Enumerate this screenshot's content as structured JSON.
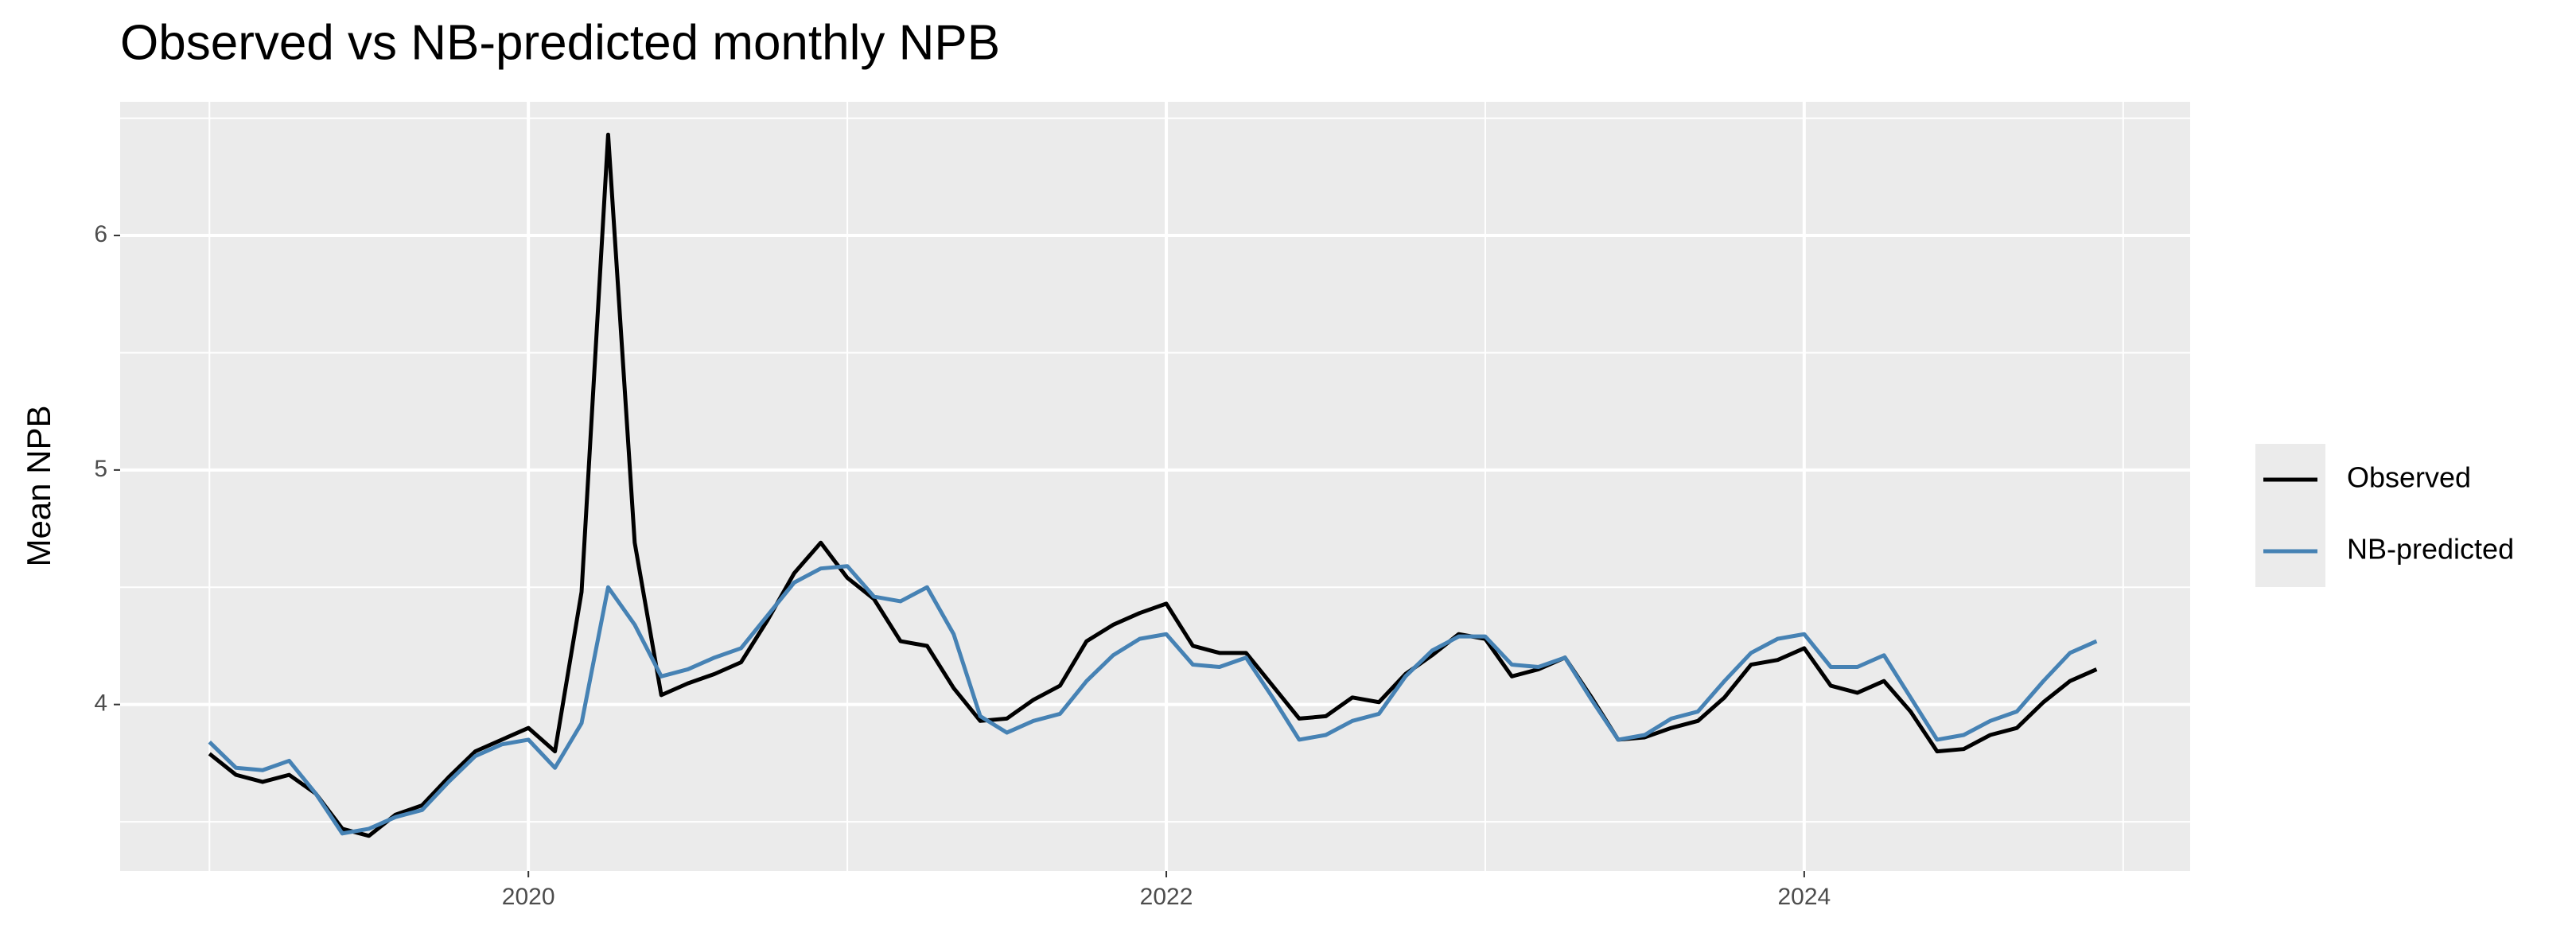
{
  "chart_data": {
    "type": "line",
    "title": "Observed vs NB-predicted monthly NPB",
    "y_label": "Mean NPB",
    "x": [
      "2019-01",
      "2019-02",
      "2019-03",
      "2019-04",
      "2019-05",
      "2019-06",
      "2019-07",
      "2019-08",
      "2019-09",
      "2019-10",
      "2019-11",
      "2019-12",
      "2020-01",
      "2020-02",
      "2020-03",
      "2020-04",
      "2020-05",
      "2020-06",
      "2020-07",
      "2020-08",
      "2020-09",
      "2020-10",
      "2020-11",
      "2020-12",
      "2021-01",
      "2021-02",
      "2021-03",
      "2021-04",
      "2021-05",
      "2021-06",
      "2021-07",
      "2021-08",
      "2021-09",
      "2021-10",
      "2021-11",
      "2021-12",
      "2022-01",
      "2022-02",
      "2022-03",
      "2022-04",
      "2022-05",
      "2022-06",
      "2022-07",
      "2022-08",
      "2022-09",
      "2022-10",
      "2022-11",
      "2022-12",
      "2023-01",
      "2023-02",
      "2023-03",
      "2023-04",
      "2023-05",
      "2023-06",
      "2023-07",
      "2023-08",
      "2023-09",
      "2023-10",
      "2023-11",
      "2023-12",
      "2024-01",
      "2024-02",
      "2024-03",
      "2024-04",
      "2024-05",
      "2024-06",
      "2024-07",
      "2024-08",
      "2024-09",
      "2024-10",
      "2024-11",
      "2024-12"
    ],
    "series": [
      {
        "name": "Observed",
        "color": "#000000",
        "values": [
          3.79,
          3.7,
          3.67,
          3.7,
          3.62,
          3.47,
          3.44,
          3.53,
          3.57,
          3.69,
          3.8,
          3.85,
          3.9,
          3.8,
          4.48,
          6.43,
          4.69,
          4.04,
          4.09,
          4.13,
          4.18,
          4.36,
          4.56,
          4.69,
          4.54,
          4.45,
          4.27,
          4.25,
          4.07,
          3.93,
          3.94,
          4.02,
          4.08,
          4.27,
          4.34,
          4.39,
          4.43,
          4.25,
          4.22,
          4.22,
          4.08,
          3.94,
          3.95,
          4.03,
          4.01,
          4.13,
          4.21,
          4.3,
          4.28,
          4.12,
          4.15,
          4.2,
          4.03,
          3.85,
          3.86,
          3.9,
          3.93,
          4.03,
          4.17,
          4.19,
          4.24,
          4.08,
          4.05,
          4.1,
          3.97,
          3.8,
          3.81,
          3.87,
          3.9,
          4.01,
          4.1,
          4.15
        ]
      },
      {
        "name": "NB-predicted",
        "color": "#4682b4",
        "values": [
          3.84,
          3.73,
          3.72,
          3.76,
          3.62,
          3.45,
          3.47,
          3.52,
          3.55,
          3.67,
          3.78,
          3.83,
          3.85,
          3.73,
          3.92,
          4.5,
          4.34,
          4.12,
          4.15,
          4.2,
          4.24,
          4.38,
          4.52,
          4.58,
          4.59,
          4.46,
          4.44,
          4.5,
          4.3,
          3.95,
          3.88,
          3.93,
          3.96,
          4.1,
          4.21,
          4.28,
          4.3,
          4.17,
          4.16,
          4.2,
          4.03,
          3.85,
          3.87,
          3.93,
          3.96,
          4.12,
          4.23,
          4.29,
          4.29,
          4.17,
          4.16,
          4.2,
          4.02,
          3.85,
          3.87,
          3.94,
          3.97,
          4.1,
          4.22,
          4.28,
          4.3,
          4.16,
          4.16,
          4.21,
          4.03,
          3.85,
          3.87,
          3.93,
          3.97,
          4.1,
          4.22,
          4.27
        ]
      }
    ],
    "xlim": [
      2018.72,
      2025.21
    ],
    "xticks": [
      2020,
      2022,
      2024
    ],
    "xminor_ticks": [
      2019,
      2021,
      2023,
      2025
    ],
    "ylim": [
      3.29,
      6.57
    ],
    "yticks": [
      4,
      5,
      6
    ],
    "yminor_ticks": [
      3.5,
      4.5,
      5.5,
      6.5
    ],
    "grid": true,
    "legend": "right"
  }
}
